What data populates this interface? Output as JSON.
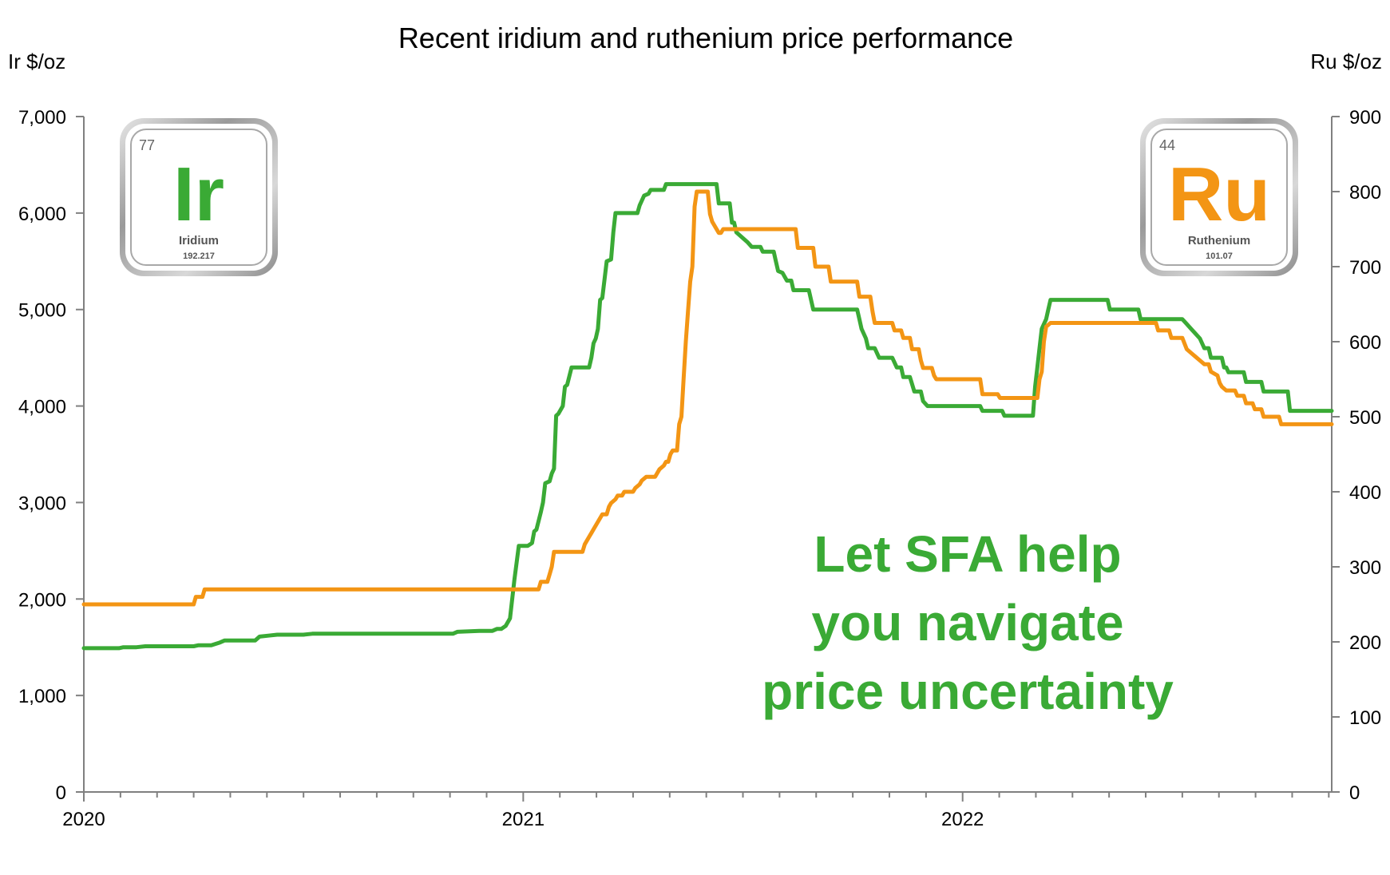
{
  "chart_data": {
    "type": "line",
    "title": "Recent iridium and ruthenium price performance",
    "y_left_label": "Ir $/oz",
    "y_right_label": "Ru $/oz",
    "y_left_range": [
      0,
      7000
    ],
    "y_right_range": [
      0,
      900
    ],
    "y_left_ticks": [
      "0",
      "1,000",
      "2,000",
      "3,000",
      "4,000",
      "5,000",
      "6,000",
      "7,000"
    ],
    "y_right_ticks": [
      "0",
      "100",
      "200",
      "300",
      "400",
      "500",
      "600",
      "700",
      "800",
      "900"
    ],
    "x_range": [
      2020.0,
      2022.84
    ],
    "x_ticks": [
      {
        "value": 2020,
        "label": "2020"
      },
      {
        "value": 2021,
        "label": "2021"
      },
      {
        "value": 2022,
        "label": "2022"
      }
    ],
    "grid": false,
    "series": [
      {
        "name": "Iridium",
        "axis": "left",
        "color": "#3aaa35",
        "points": [
          [
            2020.0,
            1490
          ],
          [
            2020.08,
            1490
          ],
          [
            2020.09,
            1500
          ],
          [
            2020.12,
            1500
          ],
          [
            2020.14,
            1510
          ],
          [
            2020.25,
            1510
          ],
          [
            2020.26,
            1520
          ],
          [
            2020.29,
            1520
          ],
          [
            2020.31,
            1550
          ],
          [
            2020.32,
            1570
          ],
          [
            2020.39,
            1570
          ],
          [
            2020.4,
            1610
          ],
          [
            2020.42,
            1620
          ],
          [
            2020.44,
            1630
          ],
          [
            2020.5,
            1630
          ],
          [
            2020.52,
            1640
          ],
          [
            2020.6,
            1640
          ],
          [
            2020.7,
            1640
          ],
          [
            2020.8,
            1640
          ],
          [
            2020.84,
            1640
          ],
          [
            2020.85,
            1660
          ],
          [
            2020.9,
            1670
          ],
          [
            2020.93,
            1670
          ],
          [
            2020.94,
            1690
          ],
          [
            2020.95,
            1690
          ],
          [
            2020.96,
            1720
          ],
          [
            2020.97,
            1800
          ],
          [
            2020.98,
            2200
          ],
          [
            2020.99,
            2550
          ],
          [
            2021.0,
            2550
          ],
          [
            2021.01,
            2550
          ],
          [
            2021.02,
            2580
          ],
          [
            2021.025,
            2700
          ],
          [
            2021.03,
            2720
          ],
          [
            2021.04,
            2900
          ],
          [
            2021.045,
            3000
          ],
          [
            2021.05,
            3200
          ],
          [
            2021.06,
            3220
          ],
          [
            2021.065,
            3300
          ],
          [
            2021.07,
            3350
          ],
          [
            2021.075,
            3900
          ],
          [
            2021.08,
            3920
          ],
          [
            2021.09,
            4000
          ],
          [
            2021.095,
            4200
          ],
          [
            2021.1,
            4220
          ],
          [
            2021.11,
            4400
          ],
          [
            2021.15,
            4400
          ],
          [
            2021.155,
            4500
          ],
          [
            2021.16,
            4650
          ],
          [
            2021.165,
            4700
          ],
          [
            2021.17,
            4800
          ],
          [
            2021.175,
            5100
          ],
          [
            2021.18,
            5120
          ],
          [
            2021.19,
            5500
          ],
          [
            2021.2,
            5520
          ],
          [
            2021.205,
            5800
          ],
          [
            2021.21,
            6000
          ],
          [
            2021.26,
            6000
          ],
          [
            2021.265,
            6080
          ],
          [
            2021.275,
            6180
          ],
          [
            2021.285,
            6200
          ],
          [
            2021.29,
            6240
          ],
          [
            2021.32,
            6240
          ],
          [
            2021.325,
            6300
          ],
          [
            2021.44,
            6300
          ],
          [
            2021.445,
            6100
          ],
          [
            2021.47,
            6100
          ],
          [
            2021.475,
            5900
          ],
          [
            2021.48,
            5900
          ],
          [
            2021.485,
            5800
          ],
          [
            2021.51,
            5700
          ],
          [
            2021.52,
            5650
          ],
          [
            2021.54,
            5650
          ],
          [
            2021.545,
            5600
          ],
          [
            2021.57,
            5600
          ],
          [
            2021.575,
            5500
          ],
          [
            2021.58,
            5400
          ],
          [
            2021.59,
            5380
          ],
          [
            2021.6,
            5300
          ],
          [
            2021.61,
            5300
          ],
          [
            2021.615,
            5200
          ],
          [
            2021.65,
            5200
          ],
          [
            2021.66,
            5000
          ],
          [
            2021.76,
            5000
          ],
          [
            2021.765,
            4900
          ],
          [
            2021.77,
            4800
          ],
          [
            2021.78,
            4700
          ],
          [
            2021.785,
            4600
          ],
          [
            2021.8,
            4600
          ],
          [
            2021.81,
            4500
          ],
          [
            2021.84,
            4500
          ],
          [
            2021.85,
            4400
          ],
          [
            2021.86,
            4400
          ],
          [
            2021.865,
            4300
          ],
          [
            2021.88,
            4300
          ],
          [
            2021.89,
            4150
          ],
          [
            2021.905,
            4150
          ],
          [
            2021.91,
            4050
          ],
          [
            2021.92,
            4000
          ],
          [
            2022.04,
            4000
          ],
          [
            2022.045,
            3950
          ],
          [
            2022.09,
            3950
          ],
          [
            2022.095,
            3900
          ],
          [
            2022.16,
            3900
          ],
          [
            2022.165,
            4200
          ],
          [
            2022.17,
            4400
          ],
          [
            2022.175,
            4600
          ],
          [
            2022.18,
            4800
          ],
          [
            2022.19,
            4900
          ],
          [
            2022.195,
            5000
          ],
          [
            2022.2,
            5100
          ],
          [
            2022.33,
            5100
          ],
          [
            2022.335,
            5000
          ],
          [
            2022.4,
            5000
          ],
          [
            2022.405,
            4900
          ],
          [
            2022.5,
            4900
          ],
          [
            2022.51,
            4850
          ],
          [
            2022.52,
            4800
          ],
          [
            2022.53,
            4750
          ],
          [
            2022.54,
            4700
          ],
          [
            2022.55,
            4600
          ],
          [
            2022.56,
            4600
          ],
          [
            2022.565,
            4500
          ],
          [
            2022.59,
            4500
          ],
          [
            2022.595,
            4400
          ],
          [
            2022.6,
            4400
          ],
          [
            2022.605,
            4350
          ],
          [
            2022.64,
            4350
          ],
          [
            2022.645,
            4250
          ],
          [
            2022.68,
            4250
          ],
          [
            2022.685,
            4150
          ],
          [
            2022.74,
            4150
          ],
          [
            2022.745,
            3950
          ],
          [
            2022.8,
            3950
          ],
          [
            2022.84,
            3950
          ]
        ]
      },
      {
        "name": "Ruthenium",
        "axis": "right",
        "color": "#f39514",
        "points": [
          [
            2020.0,
            250
          ],
          [
            2020.25,
            250
          ],
          [
            2020.255,
            260
          ],
          [
            2020.27,
            260
          ],
          [
            2020.275,
            270
          ],
          [
            2020.5,
            270
          ],
          [
            2020.7,
            270
          ],
          [
            2020.9,
            270
          ],
          [
            2021.0,
            270
          ],
          [
            2021.035,
            270
          ],
          [
            2021.04,
            280
          ],
          [
            2021.055,
            280
          ],
          [
            2021.06,
            290
          ],
          [
            2021.065,
            300
          ],
          [
            2021.07,
            320
          ],
          [
            2021.135,
            320
          ],
          [
            2021.14,
            330
          ],
          [
            2021.15,
            340
          ],
          [
            2021.155,
            345
          ],
          [
            2021.16,
            350
          ],
          [
            2021.17,
            360
          ],
          [
            2021.18,
            370
          ],
          [
            2021.19,
            370
          ],
          [
            2021.195,
            380
          ],
          [
            2021.2,
            385
          ],
          [
            2021.21,
            390
          ],
          [
            2021.215,
            395
          ],
          [
            2021.225,
            395
          ],
          [
            2021.23,
            400
          ],
          [
            2021.25,
            400
          ],
          [
            2021.255,
            405
          ],
          [
            2021.265,
            410
          ],
          [
            2021.27,
            415
          ],
          [
            2021.28,
            420
          ],
          [
            2021.3,
            420
          ],
          [
            2021.31,
            430
          ],
          [
            2021.32,
            435
          ],
          [
            2021.325,
            440
          ],
          [
            2021.33,
            440
          ],
          [
            2021.335,
            450
          ],
          [
            2021.34,
            455
          ],
          [
            2021.35,
            455
          ],
          [
            2021.355,
            490
          ],
          [
            2021.36,
            500
          ],
          [
            2021.365,
            550
          ],
          [
            2021.37,
            600
          ],
          [
            2021.375,
            640
          ],
          [
            2021.38,
            680
          ],
          [
            2021.385,
            700
          ],
          [
            2021.39,
            780
          ],
          [
            2021.395,
            800
          ],
          [
            2021.42,
            800
          ],
          [
            2021.425,
            770
          ],
          [
            2021.43,
            760
          ],
          [
            2021.44,
            750
          ],
          [
            2021.445,
            745
          ],
          [
            2021.45,
            745
          ],
          [
            2021.455,
            750
          ],
          [
            2021.62,
            750
          ],
          [
            2021.625,
            725
          ],
          [
            2021.66,
            725
          ],
          [
            2021.665,
            700
          ],
          [
            2021.695,
            700
          ],
          [
            2021.7,
            680
          ],
          [
            2021.76,
            680
          ],
          [
            2021.765,
            660
          ],
          [
            2021.79,
            660
          ],
          [
            2021.795,
            640
          ],
          [
            2021.8,
            625
          ],
          [
            2021.84,
            625
          ],
          [
            2021.845,
            615
          ],
          [
            2021.86,
            615
          ],
          [
            2021.865,
            605
          ],
          [
            2021.88,
            605
          ],
          [
            2021.885,
            590
          ],
          [
            2021.9,
            590
          ],
          [
            2021.905,
            575
          ],
          [
            2021.91,
            565
          ],
          [
            2021.93,
            565
          ],
          [
            2021.935,
            555
          ],
          [
            2021.94,
            550
          ],
          [
            2022.04,
            550
          ],
          [
            2022.045,
            530
          ],
          [
            2022.08,
            530
          ],
          [
            2022.085,
            525
          ],
          [
            2022.17,
            525
          ],
          [
            2022.175,
            550
          ],
          [
            2022.18,
            560
          ],
          [
            2022.185,
            600
          ],
          [
            2022.19,
            620
          ],
          [
            2022.2,
            625
          ],
          [
            2022.4,
            625
          ],
          [
            2022.44,
            625
          ],
          [
            2022.445,
            615
          ],
          [
            2022.47,
            615
          ],
          [
            2022.475,
            605
          ],
          [
            2022.5,
            605
          ],
          [
            2022.51,
            590
          ],
          [
            2022.52,
            585
          ],
          [
            2022.53,
            580
          ],
          [
            2022.54,
            575
          ],
          [
            2022.55,
            570
          ],
          [
            2022.56,
            570
          ],
          [
            2022.565,
            560
          ],
          [
            2022.58,
            555
          ],
          [
            2022.585,
            545
          ],
          [
            2022.59,
            540
          ],
          [
            2022.6,
            535
          ],
          [
            2022.62,
            535
          ],
          [
            2022.625,
            528
          ],
          [
            2022.64,
            528
          ],
          [
            2022.645,
            518
          ],
          [
            2022.66,
            518
          ],
          [
            2022.665,
            510
          ],
          [
            2022.68,
            510
          ],
          [
            2022.685,
            500
          ],
          [
            2022.72,
            500
          ],
          [
            2022.725,
            490
          ],
          [
            2022.78,
            490
          ],
          [
            2022.84,
            490
          ]
        ]
      }
    ]
  },
  "badges": [
    {
      "number": "77",
      "symbol": "Ir",
      "name": "Iridium",
      "mass": "192.217",
      "color": "#3aaa35"
    },
    {
      "number": "44",
      "symbol": "Ru",
      "name": "Ruthenium",
      "mass": "101.07",
      "color": "#f39514"
    }
  ],
  "promo": {
    "line1": "Let SFA help",
    "line2": "you navigate",
    "line3": "price uncertainty",
    "color": "#3aaa35"
  }
}
